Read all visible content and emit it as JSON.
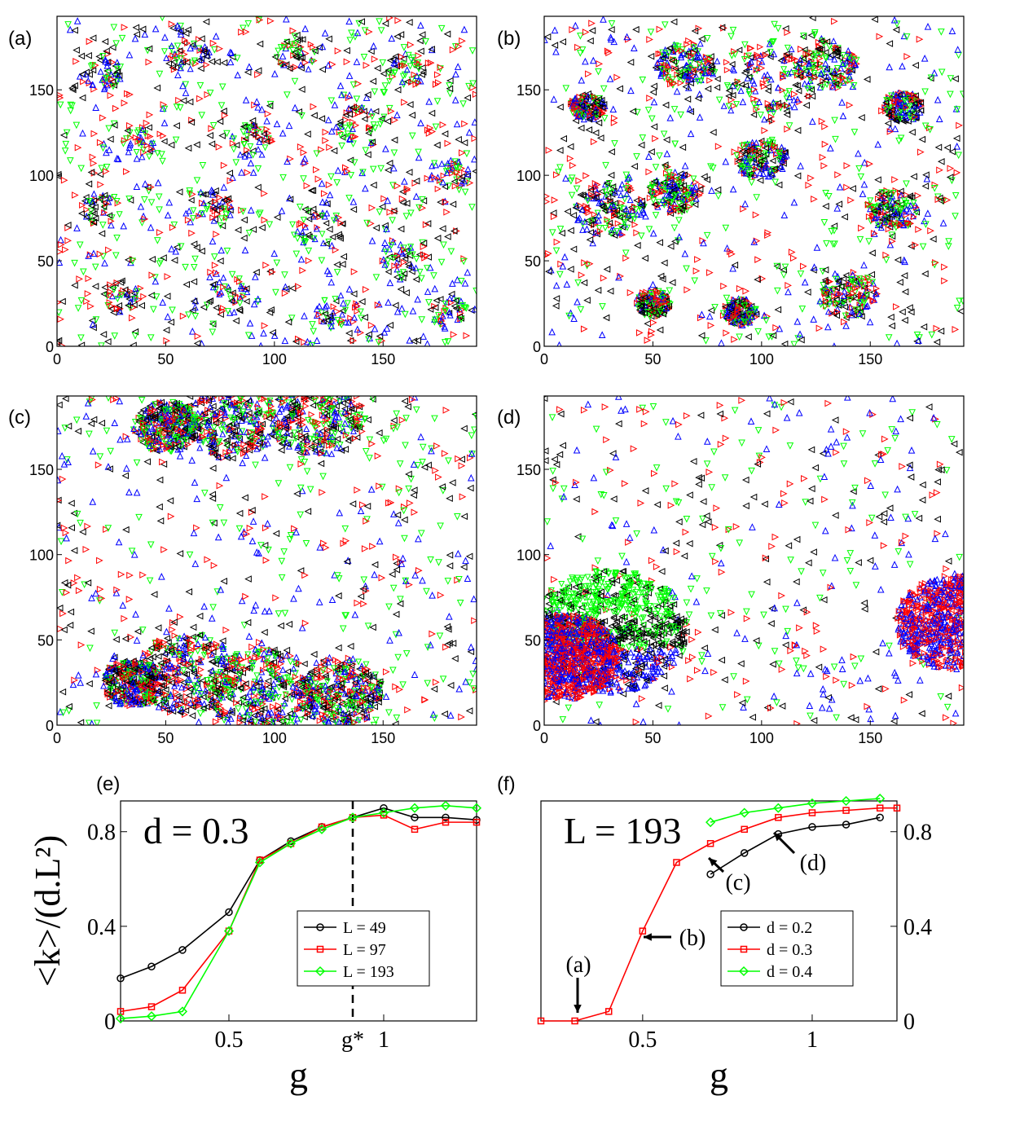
{
  "figure": {
    "panel_labels": [
      "(a)",
      "(b)",
      "(c)",
      "(d)",
      "(e)",
      "(f)"
    ]
  },
  "chart_data": [
    {
      "id": "a",
      "type": "scatter",
      "label": "(a)",
      "xlim": [
        0,
        193
      ],
      "ylim": [
        0,
        193
      ],
      "xticks": [
        "0",
        "50",
        "100",
        "150"
      ],
      "yticks": [
        "0",
        "50",
        "100",
        "150"
      ],
      "description_series": [
        "black left-triangle",
        "red right-triangle",
        "blue up-triangle",
        "green down-triangle"
      ],
      "colors": {
        "black": "#000000",
        "red": "#ff0000",
        "blue": "#0000ff",
        "green": "#00ff00"
      },
      "clusters": [
        [
          20,
          160,
          10
        ],
        [
          60,
          170,
          11
        ],
        [
          110,
          170,
          10
        ],
        [
          160,
          160,
          11
        ],
        [
          40,
          120,
          10
        ],
        [
          90,
          120,
          10
        ],
        [
          140,
          130,
          12
        ],
        [
          180,
          100,
          10
        ],
        [
          20,
          80,
          10
        ],
        [
          70,
          80,
          11
        ],
        [
          120,
          70,
          12
        ],
        [
          160,
          50,
          11
        ],
        [
          30,
          30,
          10
        ],
        [
          80,
          30,
          11
        ],
        [
          130,
          20,
          10
        ],
        [
          180,
          20,
          9
        ]
      ],
      "background": 900,
      "cluster_points": 42
    },
    {
      "id": "b",
      "type": "scatter",
      "label": "(b)",
      "xlim": [
        0,
        193
      ],
      "ylim": [
        0,
        193
      ],
      "xticks": [
        "0",
        "50",
        "100",
        "150"
      ],
      "yticks": [
        "0",
        "50",
        "100",
        "150"
      ],
      "clusters": [
        [
          100,
          155,
          24
        ],
        [
          65,
          165,
          14
        ],
        [
          130,
          165,
          14
        ],
        [
          30,
          80,
          16
        ],
        [
          60,
          90,
          12
        ],
        [
          100,
          110,
          12
        ],
        [
          160,
          80,
          12
        ],
        [
          140,
          30,
          14
        ],
        [
          90,
          20,
          8
        ],
        [
          50,
          25,
          8
        ],
        [
          165,
          140,
          9
        ],
        [
          20,
          140,
          8
        ]
      ],
      "background": 650,
      "cluster_points": 150
    },
    {
      "id": "c",
      "type": "scatter",
      "label": "(c)",
      "xlim": [
        0,
        193
      ],
      "ylim": [
        0,
        193
      ],
      "xticks": [
        "0",
        "50",
        "100",
        "150"
      ],
      "yticks": [
        "0",
        "50",
        "100",
        "150"
      ],
      "clusters": [
        [
          80,
          178,
          22
        ],
        [
          120,
          180,
          22
        ],
        [
          50,
          175,
          15
        ],
        [
          60,
          30,
          24
        ],
        [
          95,
          20,
          25
        ],
        [
          130,
          20,
          20
        ],
        [
          35,
          25,
          14
        ]
      ],
      "background": 650,
      "cluster_points": 320
    },
    {
      "id": "d",
      "type": "scatter",
      "label": "(d)",
      "xlim": [
        0,
        193
      ],
      "ylim": [
        0,
        193
      ],
      "xticks": [
        "0",
        "50",
        "100",
        "150"
      ],
      "yticks": [
        "0",
        "50",
        "100",
        "150"
      ],
      "clusters": [
        [
          30,
          55,
          36
        ],
        [
          10,
          40,
          25
        ],
        [
          190,
          60,
          28
        ]
      ],
      "background": 520,
      "cluster_points": 900
    },
    {
      "id": "e",
      "type": "line",
      "label": "(e)",
      "annotation": "d = 0.3",
      "xlabel": "g",
      "ylabel": "<k>/(d.L²)",
      "xlim": [
        0.15,
        1.3
      ],
      "ylim": [
        0,
        0.93
      ],
      "xticks": [
        {
          "v": 0.5,
          "t": "0.5"
        },
        {
          "v": 1,
          "t": "1"
        }
      ],
      "yticks": [
        {
          "v": 0,
          "t": "0"
        },
        {
          "v": 0.4,
          "t": "0.4"
        },
        {
          "v": 0.8,
          "t": "0.8"
        }
      ],
      "vline": {
        "x": 0.9,
        "label": "g*"
      },
      "series": [
        {
          "name": "L = 49",
          "color": "#000000",
          "marker": "circle",
          "x": [
            0.15,
            0.25,
            0.35,
            0.5,
            0.6,
            0.7,
            0.8,
            0.9,
            1.0,
            1.1,
            1.2,
            1.3
          ],
          "y": [
            0.18,
            0.23,
            0.3,
            0.46,
            0.68,
            0.76,
            0.82,
            0.86,
            0.9,
            0.86,
            0.86,
            0.85
          ]
        },
        {
          "name": "L = 97",
          "color": "#ff0000",
          "marker": "square",
          "x": [
            0.15,
            0.25,
            0.35,
            0.5,
            0.6,
            0.7,
            0.8,
            0.9,
            1.0,
            1.1,
            1.2,
            1.3
          ],
          "y": [
            0.04,
            0.06,
            0.13,
            0.38,
            0.68,
            0.75,
            0.82,
            0.86,
            0.87,
            0.81,
            0.84,
            0.84
          ]
        },
        {
          "name": "L = 193",
          "color": "#00ff00",
          "marker": "diamond",
          "x": [
            0.15,
            0.25,
            0.35,
            0.5,
            0.6,
            0.7,
            0.8,
            0.9,
            1.0,
            1.1,
            1.2,
            1.3
          ],
          "y": [
            0.01,
            0.02,
            0.04,
            0.38,
            0.67,
            0.75,
            0.81,
            0.86,
            0.88,
            0.9,
            0.91,
            0.9
          ]
        }
      ]
    },
    {
      "id": "f",
      "type": "line",
      "label": "(f)",
      "annotation": "L = 193",
      "xlabel": "g",
      "xlim": [
        0.2,
        1.25
      ],
      "ylim": [
        0,
        0.93
      ],
      "xticks": [
        {
          "v": 0.5,
          "t": "0.5"
        },
        {
          "v": 1,
          "t": "1"
        }
      ],
      "yticks": [
        {
          "v": 0,
          "t": "0"
        },
        {
          "v": 0.4,
          "t": "0.4"
        },
        {
          "v": 0.8,
          "t": "0.8"
        }
      ],
      "series": [
        {
          "name": "d = 0.2",
          "color": "#000000",
          "marker": "circle",
          "x": [
            0.7,
            0.8,
            0.9,
            1.0,
            1.1,
            1.2
          ],
          "y": [
            0.62,
            0.71,
            0.79,
            0.82,
            0.83,
            0.86
          ]
        },
        {
          "name": "d = 0.3",
          "color": "#ff0000",
          "marker": "square",
          "x": [
            0.2,
            0.3,
            0.4,
            0.5,
            0.6,
            0.7,
            0.8,
            0.9,
            1.0,
            1.1,
            1.2,
            1.25
          ],
          "y": [
            0.0,
            0.0,
            0.04,
            0.38,
            0.67,
            0.75,
            0.81,
            0.86,
            0.88,
            0.89,
            0.9,
            0.9
          ]
        },
        {
          "name": "d = 0.4",
          "color": "#00ff00",
          "marker": "diamond",
          "x": [
            0.7,
            0.8,
            0.9,
            1.0,
            1.1,
            1.2
          ],
          "y": [
            0.84,
            0.88,
            0.9,
            0.92,
            0.93,
            0.94
          ]
        }
      ],
      "annotations": [
        {
          "text": "(a)",
          "x": 0.3,
          "y": 0.0
        },
        {
          "text": "(b)",
          "x": 0.5,
          "y": 0.38
        },
        {
          "text": "(c)",
          "x": 0.75,
          "y": 0.75
        },
        {
          "text": "(d)",
          "x": 0.92,
          "y": 0.82
        }
      ]
    }
  ]
}
